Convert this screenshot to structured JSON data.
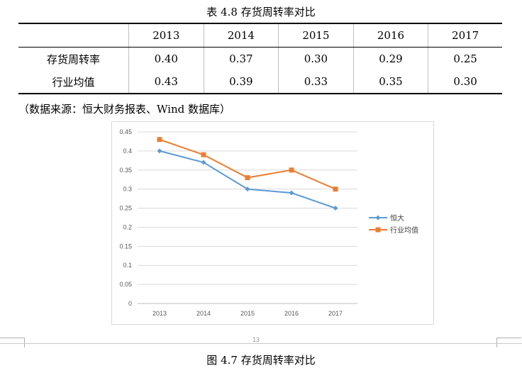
{
  "table": {
    "title": "表 4.8 存货周转率对比",
    "years": [
      "2013",
      "2014",
      "2015",
      "2016",
      "2017"
    ],
    "rows": [
      {
        "label": "存货周转率",
        "values": [
          "0.40",
          "0.37",
          "0.30",
          "0.29",
          "0.25"
        ]
      },
      {
        "label": "行业均值",
        "values": [
          "0.43",
          "0.39",
          "0.33",
          "0.35",
          "0.30"
        ]
      }
    ]
  },
  "source_note": "（数据来源：恒大财务报表、Wind 数据库）",
  "page_number": "13",
  "figure_caption": "图 4.7 存货周转率对比",
  "chart_data": {
    "type": "line",
    "x": [
      "2013",
      "2014",
      "2015",
      "2016",
      "2017"
    ],
    "series": [
      {
        "name": "恒大",
        "values": [
          0.4,
          0.37,
          0.3,
          0.29,
          0.25
        ],
        "color": "#5b9bd5",
        "marker": "diamond"
      },
      {
        "name": "行业均值",
        "values": [
          0.43,
          0.39,
          0.33,
          0.35,
          0.3
        ],
        "color": "#ed7d31",
        "marker": "square"
      }
    ],
    "ylim": [
      0,
      0.45
    ],
    "yticks": [
      "0",
      "0.05",
      "0.1",
      "0.15",
      "0.2",
      "0.25",
      "0.3",
      "0.35",
      "0.4",
      "0.45"
    ],
    "grid": true,
    "legend": "right"
  }
}
